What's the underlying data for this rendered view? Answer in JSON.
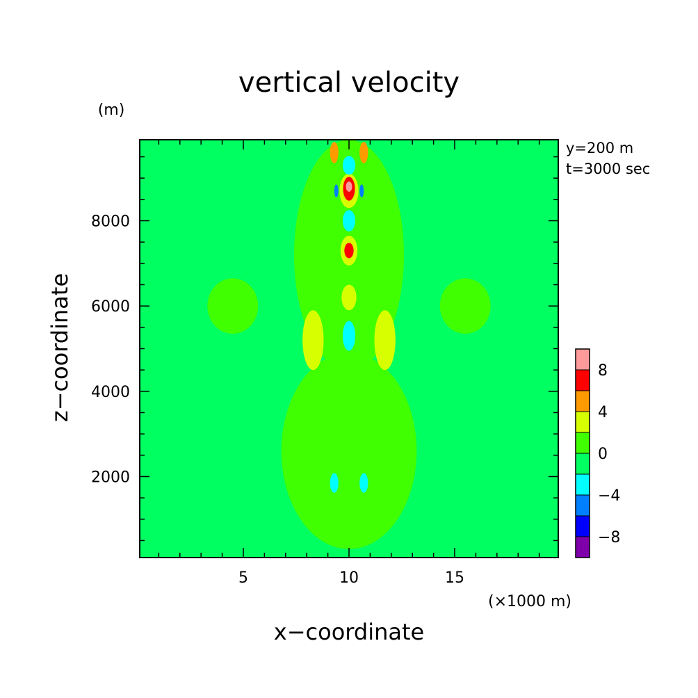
{
  "chart_data": {
    "type": "heatmap",
    "title": "vertical velocity",
    "xlabel": "x−coordinate",
    "ylabel": "z−coordinate",
    "x_unit": "(×1000 m)",
    "y_unit": "(m)",
    "annotations": [
      "y=200 m",
      "t=3000 sec"
    ],
    "xlim": [
      0.1,
      19.9
    ],
    "ylim": [
      100,
      9900
    ],
    "x_ticks": [
      5,
      10,
      15
    ],
    "x_tick_labels": [
      "5",
      "10",
      "15"
    ],
    "y_ticks": [
      2000,
      4000,
      6000,
      8000
    ],
    "y_tick_labels": [
      "2000",
      "4000",
      "6000",
      "8000"
    ],
    "colorbar": {
      "levels": [
        -10,
        -8,
        -6,
        -4,
        -2,
        0,
        2,
        4,
        6,
        8,
        10
      ],
      "tick_labels": [
        "8",
        "4",
        "0",
        "−4",
        "−8"
      ],
      "tick_values": [
        8,
        4,
        0,
        -4,
        -8
      ],
      "colors": [
        "#7f00aa",
        "#0000ff",
        "#0080ff",
        "#00ffff",
        "#00ff60",
        "#40ff00",
        "#d8ff00",
        "#ff9a00",
        "#ff0000",
        "#ff9a9a"
      ]
    },
    "field_regions": [
      {
        "level": "0 to 2",
        "color": "#40ff00",
        "shape": "ellipse",
        "cx": 10,
        "cy": 7200,
        "rx": 2.6,
        "ry": 2700
      },
      {
        "level": "0 to 2",
        "color": "#40ff00",
        "shape": "ellipse",
        "cx": 10,
        "cy": 2600,
        "rx": 3.2,
        "ry": 2300
      },
      {
        "level": "0 to 2",
        "color": "#40ff00",
        "shape": "ellipse",
        "cx": 4.5,
        "cy": 6000,
        "rx": 1.2,
        "ry": 650
      },
      {
        "level": "0 to 2",
        "color": "#40ff00",
        "shape": "ellipse",
        "cx": 15.5,
        "cy": 6000,
        "rx": 1.2,
        "ry": 650
      },
      {
        "level": "2 to 4",
        "color": "#d8ff00",
        "shape": "ellipse",
        "cx": 8.3,
        "cy": 5200,
        "rx": 0.5,
        "ry": 700
      },
      {
        "level": "2 to 4",
        "color": "#d8ff00",
        "shape": "ellipse",
        "cx": 11.7,
        "cy": 5200,
        "rx": 0.5,
        "ry": 700
      },
      {
        "level": "2 to 4",
        "color": "#d8ff00",
        "shape": "ellipse",
        "cx": 10,
        "cy": 8700,
        "rx": 0.45,
        "ry": 400
      },
      {
        "level": "2 to 4",
        "color": "#d8ff00",
        "shape": "ellipse",
        "cx": 10,
        "cy": 7300,
        "rx": 0.4,
        "ry": 350
      },
      {
        "level": "2 to 4",
        "color": "#d8ff00",
        "shape": "ellipse",
        "cx": 10,
        "cy": 6200,
        "rx": 0.35,
        "ry": 300
      },
      {
        "level": "4 to 6",
        "color": "#ff9a00",
        "shape": "ellipse",
        "cx": 9.3,
        "cy": 9600,
        "rx": 0.2,
        "ry": 250
      },
      {
        "level": "4 to 6",
        "color": "#ff9a00",
        "shape": "ellipse",
        "cx": 10.7,
        "cy": 9600,
        "rx": 0.2,
        "ry": 250
      },
      {
        "level": "6 to 8",
        "color": "#ff0000",
        "shape": "ellipse",
        "cx": 10,
        "cy": 8750,
        "rx": 0.28,
        "ry": 280
      },
      {
        "level": "6 to 8",
        "color": "#ff0000",
        "shape": "ellipse",
        "cx": 10,
        "cy": 7300,
        "rx": 0.22,
        "ry": 180
      },
      {
        "level": "8 to 10",
        "color": "#ff9a9a",
        "shape": "ellipse",
        "cx": 10,
        "cy": 8800,
        "rx": 0.15,
        "ry": 120
      },
      {
        "level": "-4 to -2",
        "color": "#00ffff",
        "shape": "ellipse",
        "cx": 10,
        "cy": 9300,
        "rx": 0.3,
        "ry": 220
      },
      {
        "level": "-4 to -2",
        "color": "#00ffff",
        "shape": "ellipse",
        "cx": 10,
        "cy": 8000,
        "rx": 0.3,
        "ry": 250
      },
      {
        "level": "-4 to -2",
        "color": "#00ffff",
        "shape": "ellipse",
        "cx": 10,
        "cy": 5300,
        "rx": 0.3,
        "ry": 350
      },
      {
        "level": "-4 to -2",
        "color": "#00ffff",
        "shape": "ellipse",
        "cx": 9.3,
        "cy": 1850,
        "rx": 0.2,
        "ry": 230
      },
      {
        "level": "-4 to -2",
        "color": "#00ffff",
        "shape": "ellipse",
        "cx": 10.7,
        "cy": 1850,
        "rx": 0.2,
        "ry": 230
      },
      {
        "level": "-6 to -4",
        "color": "#0080ff",
        "shape": "ellipse",
        "cx": 9.4,
        "cy": 8700,
        "rx": 0.1,
        "ry": 150
      },
      {
        "level": "-6 to -4",
        "color": "#0080ff",
        "shape": "ellipse",
        "cx": 10.6,
        "cy": 8700,
        "rx": 0.1,
        "ry": 150
      }
    ]
  }
}
